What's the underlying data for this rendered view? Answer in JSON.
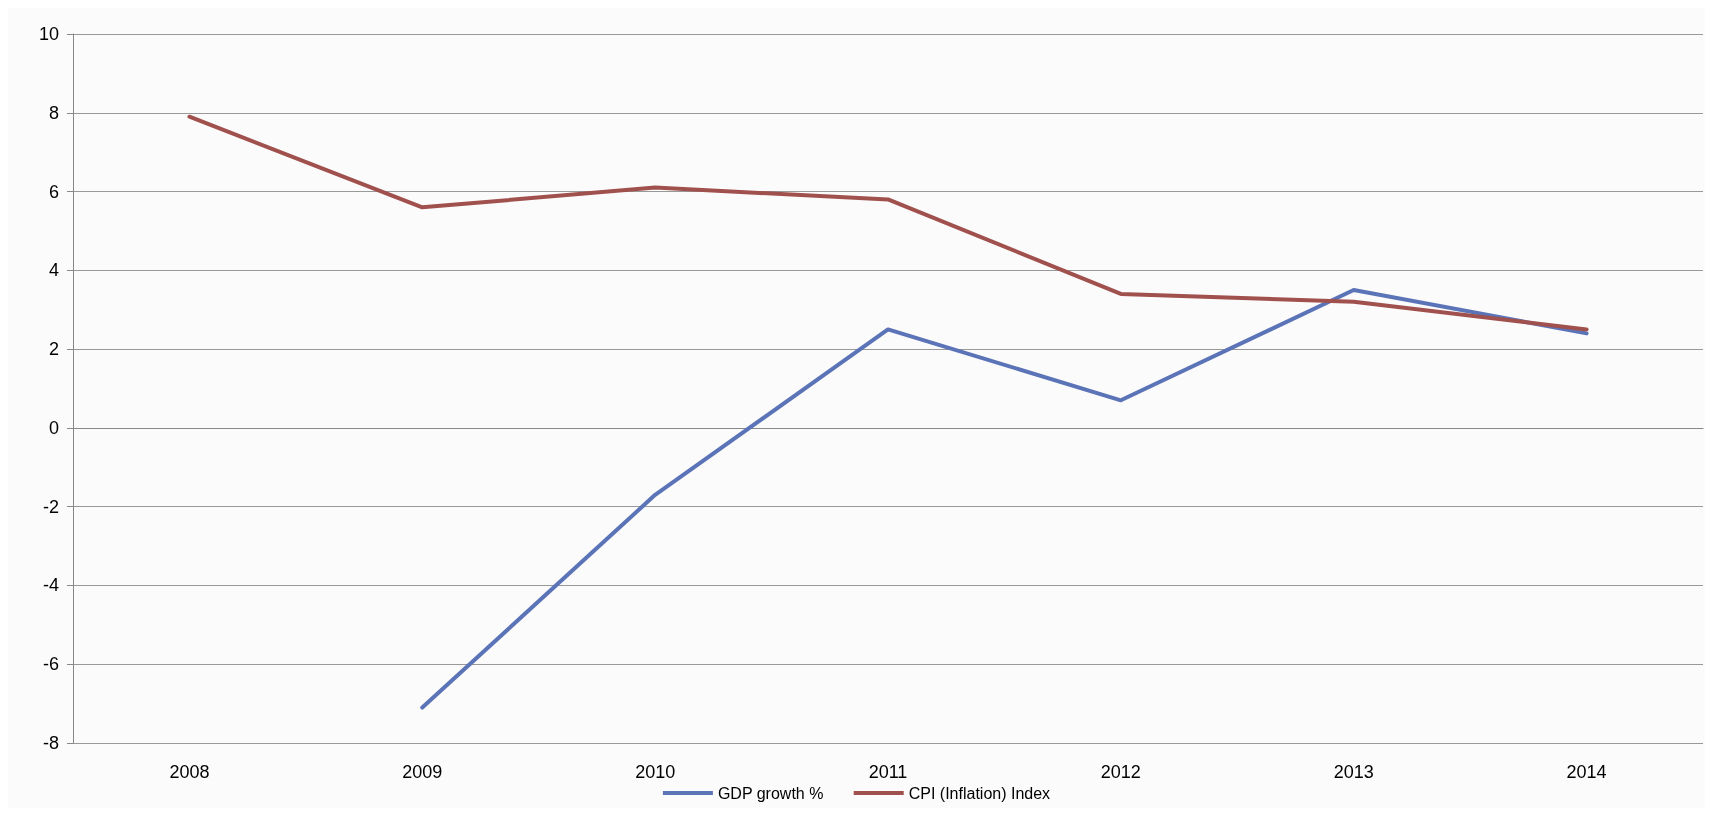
{
  "chart_data": {
    "type": "line",
    "categories": [
      "2008",
      "2009",
      "2010",
      "2011",
      "2012",
      "2013",
      "2014"
    ],
    "series": [
      {
        "name": "GDP growth %",
        "color": "#5b73b7",
        "values": [
          null,
          -7.1,
          -1.7,
          2.5,
          0.7,
          3.5,
          2.4
        ]
      },
      {
        "name": "CPI (Inflation) Index",
        "color": "#a0504d",
        "values": [
          7.9,
          5.6,
          6.1,
          5.8,
          3.4,
          3.2,
          2.5
        ]
      }
    ],
    "ylim": [
      -8,
      10
    ],
    "yticks": [
      -8,
      -6,
      -4,
      -2,
      0,
      2,
      4,
      6,
      8,
      10
    ],
    "grid": "y",
    "legend": "bottom",
    "marker": "none",
    "line_style": "solid"
  }
}
